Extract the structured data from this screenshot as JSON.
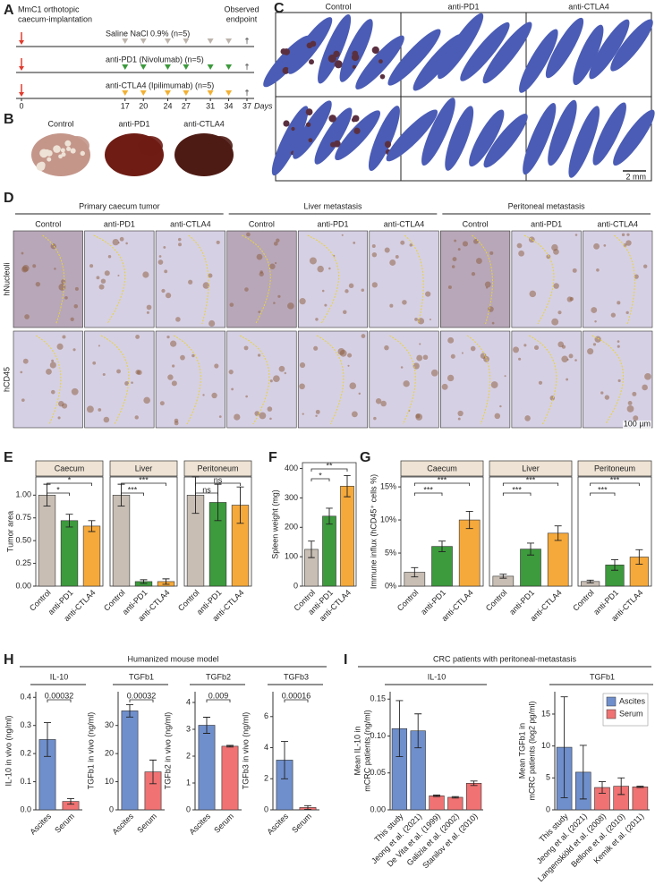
{
  "panel_labels": [
    "A",
    "B",
    "C",
    "D",
    "E",
    "F",
    "G",
    "H",
    "I"
  ],
  "timeline": {
    "title_lines": [
      "MmC1 orthotopic",
      "caecum-implantation"
    ],
    "endpoint_lines": [
      "Observed",
      "endpoint"
    ],
    "days": [
      0,
      17,
      20,
      24,
      27,
      31,
      34,
      37
    ],
    "days_label": "Days",
    "endpoint_mark": "†",
    "implant_color": "#e23b2e",
    "groups": [
      {
        "label": "Saline NaCl 0.9% (n=5)",
        "color": "#bdb5ad"
      },
      {
        "label": "anti-PD1 (Nivolumab) (n=5)",
        "color": "#3d9a3d"
      },
      {
        "label": "anti-CTLA4 (Ipilimumab) (n=5)",
        "color": "#f2b134"
      }
    ]
  },
  "panel_b": {
    "columns": [
      "Control",
      "anti-PD1",
      "anti-CTLA4"
    ]
  },
  "panel_c": {
    "columns": [
      "Control",
      "anti-PD1",
      "anti-CTLA4"
    ],
    "scale_bar": "2 mm"
  },
  "panel_d": {
    "groups": [
      {
        "title": "Primary caecum tumor",
        "columns": [
          "Control",
          "anti-PD1",
          "anti-CTLA4"
        ]
      },
      {
        "title": "Liver metastasis",
        "columns": [
          "Control",
          "anti-PD1",
          "anti-CTLA4"
        ]
      },
      {
        "title": "Peritoneal metastasis",
        "columns": [
          "Control",
          "anti-PD1",
          "anti-CTLA4"
        ]
      }
    ],
    "rows": [
      "hNucleoli",
      "hCD45"
    ],
    "scale_bar": "100 µm"
  },
  "chart_data": [
    {
      "type": "faceted_bar",
      "ylabel": "Tumor area",
      "categories": [
        "Control",
        "anti-PD1",
        "anti-CTLA4"
      ],
      "colors": [
        "#c8beb4",
        "#3d9a3d",
        "#f6a93b"
      ],
      "ylim": [
        0,
        1.2
      ],
      "yticks": [
        {
          "value": 0,
          "label": "0.00"
        },
        {
          "value": 0.25,
          "label": "0.25"
        },
        {
          "value": 0.5,
          "label": "0.50"
        },
        {
          "value": 0.75,
          "label": "0.75"
        },
        {
          "value": 1,
          "label": "1.00"
        }
      ],
      "facets": [
        {
          "title": "Caecum",
          "values": [
            1.0,
            0.72,
            0.66
          ],
          "errors": [
            0.12,
            0.07,
            0.06
          ],
          "significance": [
            "*",
            "*"
          ]
        },
        {
          "title": "Liver",
          "values": [
            1.0,
            0.05,
            0.05
          ],
          "errors": [
            0.12,
            0.02,
            0.03
          ],
          "significance": [
            "***",
            "***"
          ]
        },
        {
          "title": "Peritoneum",
          "values": [
            1.0,
            0.92,
            0.89
          ],
          "errors": [
            0.2,
            0.2,
            0.2
          ],
          "significance": [
            "ns",
            "ns"
          ]
        }
      ]
    },
    {
      "type": "bar",
      "ylabel": "Spleen weight (mg)",
      "categories": [
        "Control",
        "anti-PD1",
        "anti-CTLA4"
      ],
      "colors": [
        "#c8beb4",
        "#3d9a3d",
        "#f6a93b"
      ],
      "values": [
        125,
        238,
        340
      ],
      "errors": [
        28,
        27,
        36
      ],
      "ylim": [
        0,
        420
      ],
      "yticks": [
        0,
        100,
        200,
        300,
        400
      ],
      "significance": [
        "*",
        "**"
      ]
    },
    {
      "type": "faceted_bar",
      "ylabel": "Immune influx (hCD45⁺ cells %)",
      "categories": [
        "Control",
        "anti-PD1",
        "anti-CTLA4"
      ],
      "colors": [
        "#c8beb4",
        "#3d9a3d",
        "#f6a93b"
      ],
      "ylim": [
        0,
        16.5
      ],
      "yticks": [
        {
          "value": 0,
          "label": "0%"
        },
        {
          "value": 5,
          "label": "5%"
        },
        {
          "value": 10,
          "label": "10%"
        },
        {
          "value": 15,
          "label": "15%"
        }
      ],
      "facets": [
        {
          "title": "Caecum",
          "values": [
            2.1,
            6.0,
            10.0
          ],
          "errors": [
            0.7,
            0.8,
            1.3
          ],
          "significance": [
            "***",
            "***"
          ]
        },
        {
          "title": "Liver",
          "values": [
            1.5,
            5.6,
            8.0
          ],
          "errors": [
            0.3,
            0.9,
            1.1
          ],
          "significance": [
            "***",
            "***"
          ]
        },
        {
          "title": "Peritoneum",
          "values": [
            0.7,
            3.2,
            4.4
          ],
          "errors": [
            0.2,
            0.8,
            1.1
          ],
          "significance": [
            "***",
            "***"
          ]
        }
      ]
    },
    {
      "type": "faceted_bar",
      "title": "Humanized mouse model",
      "categories": [
        "Ascites",
        "Serum"
      ],
      "colors": [
        "#6f8fcc",
        "#f07272"
      ],
      "facets": [
        {
          "title": "IL-10",
          "ylabel": "IL-10 in vivo (ng/ml)",
          "values": [
            0.25,
            0.03
          ],
          "errors": [
            0.06,
            0.01
          ],
          "ylim": [
            0,
            0.42
          ],
          "yticks": [
            {
              "value": 0,
              "label": "0.0"
            },
            0.1,
            0.2,
            0.3,
            0.4
          ],
          "significance": [
            "0.00032"
          ]
        },
        {
          "title": "TGFb1",
          "ylabel": "TGFb1 in vivo (ng/ml)",
          "values": [
            35.2,
            13.5
          ],
          "errors": [
            2.2,
            4.2
          ],
          "ylim": [
            0,
            42
          ],
          "yticks": [
            0,
            10,
            20,
            30
          ],
          "significance": [
            "0.00032"
          ]
        },
        {
          "title": "TGFb2",
          "ylabel": "TGFb2 in vivo (ng/ml)",
          "values": [
            3.15,
            2.37
          ],
          "errors": [
            0.3,
            0.03
          ],
          "ylim": [
            0,
            4.4
          ],
          "yticks": [
            0,
            1,
            2,
            3,
            4
          ],
          "significance": [
            "0.009"
          ]
        },
        {
          "title": "TGFb3",
          "ylabel": "TGFb3 in vivo (ng/ml)",
          "values": [
            3.2,
            0.15
          ],
          "errors": [
            1.2,
            0.12
          ],
          "ylim": [
            0,
            7.6
          ],
          "yticks": [
            0,
            2,
            4,
            6
          ],
          "significance": [
            "0.00016"
          ]
        }
      ]
    },
    {
      "type": "faceted_bar",
      "title": "CRC patients with peritoneal-metastasis",
      "legend": [
        {
          "name": "Ascites",
          "color": "#6f8fcc"
        },
        {
          "name": "Serum",
          "color": "#f07272"
        }
      ],
      "facets": [
        {
          "title": "IL-10",
          "ylabel": [
            "Mean IL-10 in",
            "mCRC patients (ng/ml)"
          ],
          "categories": [
            "This study",
            "Jeong et al. (2021)",
            "De Vita et al. (1999)",
            "Galizia et al. (2002)",
            "Stanilov et al. (2010)"
          ],
          "colors": [
            "#6f8fcc",
            "#6f8fcc",
            "#f07272",
            "#f07272",
            "#f07272"
          ],
          "values": [
            0.11,
            0.107,
            0.019,
            0.017,
            0.036
          ],
          "errors": [
            0.038,
            0.023,
            0.001,
            0.001,
            0.003
          ],
          "ylim": [
            0,
            0.16
          ],
          "yticks": [
            {
              "value": 0,
              "label": "0.00"
            },
            0.05,
            {
              "value": 0.1,
              "label": "0.10"
            },
            0.15
          ]
        },
        {
          "title": "TGFb1",
          "ylabel": [
            "Mean TGFb1 in",
            "mCRC patients (log2 pg/ml)"
          ],
          "categories": [
            "This study",
            "Jeong et al. (2021)",
            "Langenskiöld et al. (2008)",
            "Bellone et al. (2010)",
            "Kemik et al. (2011)"
          ],
          "colors": [
            "#6f8fcc",
            "#6f8fcc",
            "#f07272",
            "#f07272",
            "#f07272"
          ],
          "values": [
            9.8,
            5.9,
            3.5,
            3.7,
            3.6
          ],
          "errors": [
            7.9,
            4.2,
            0.9,
            1.3,
            0.1
          ],
          "ylim": [
            0,
            18.5
          ],
          "yticks": [
            0,
            5,
            10,
            15
          ]
        }
      ]
    }
  ]
}
